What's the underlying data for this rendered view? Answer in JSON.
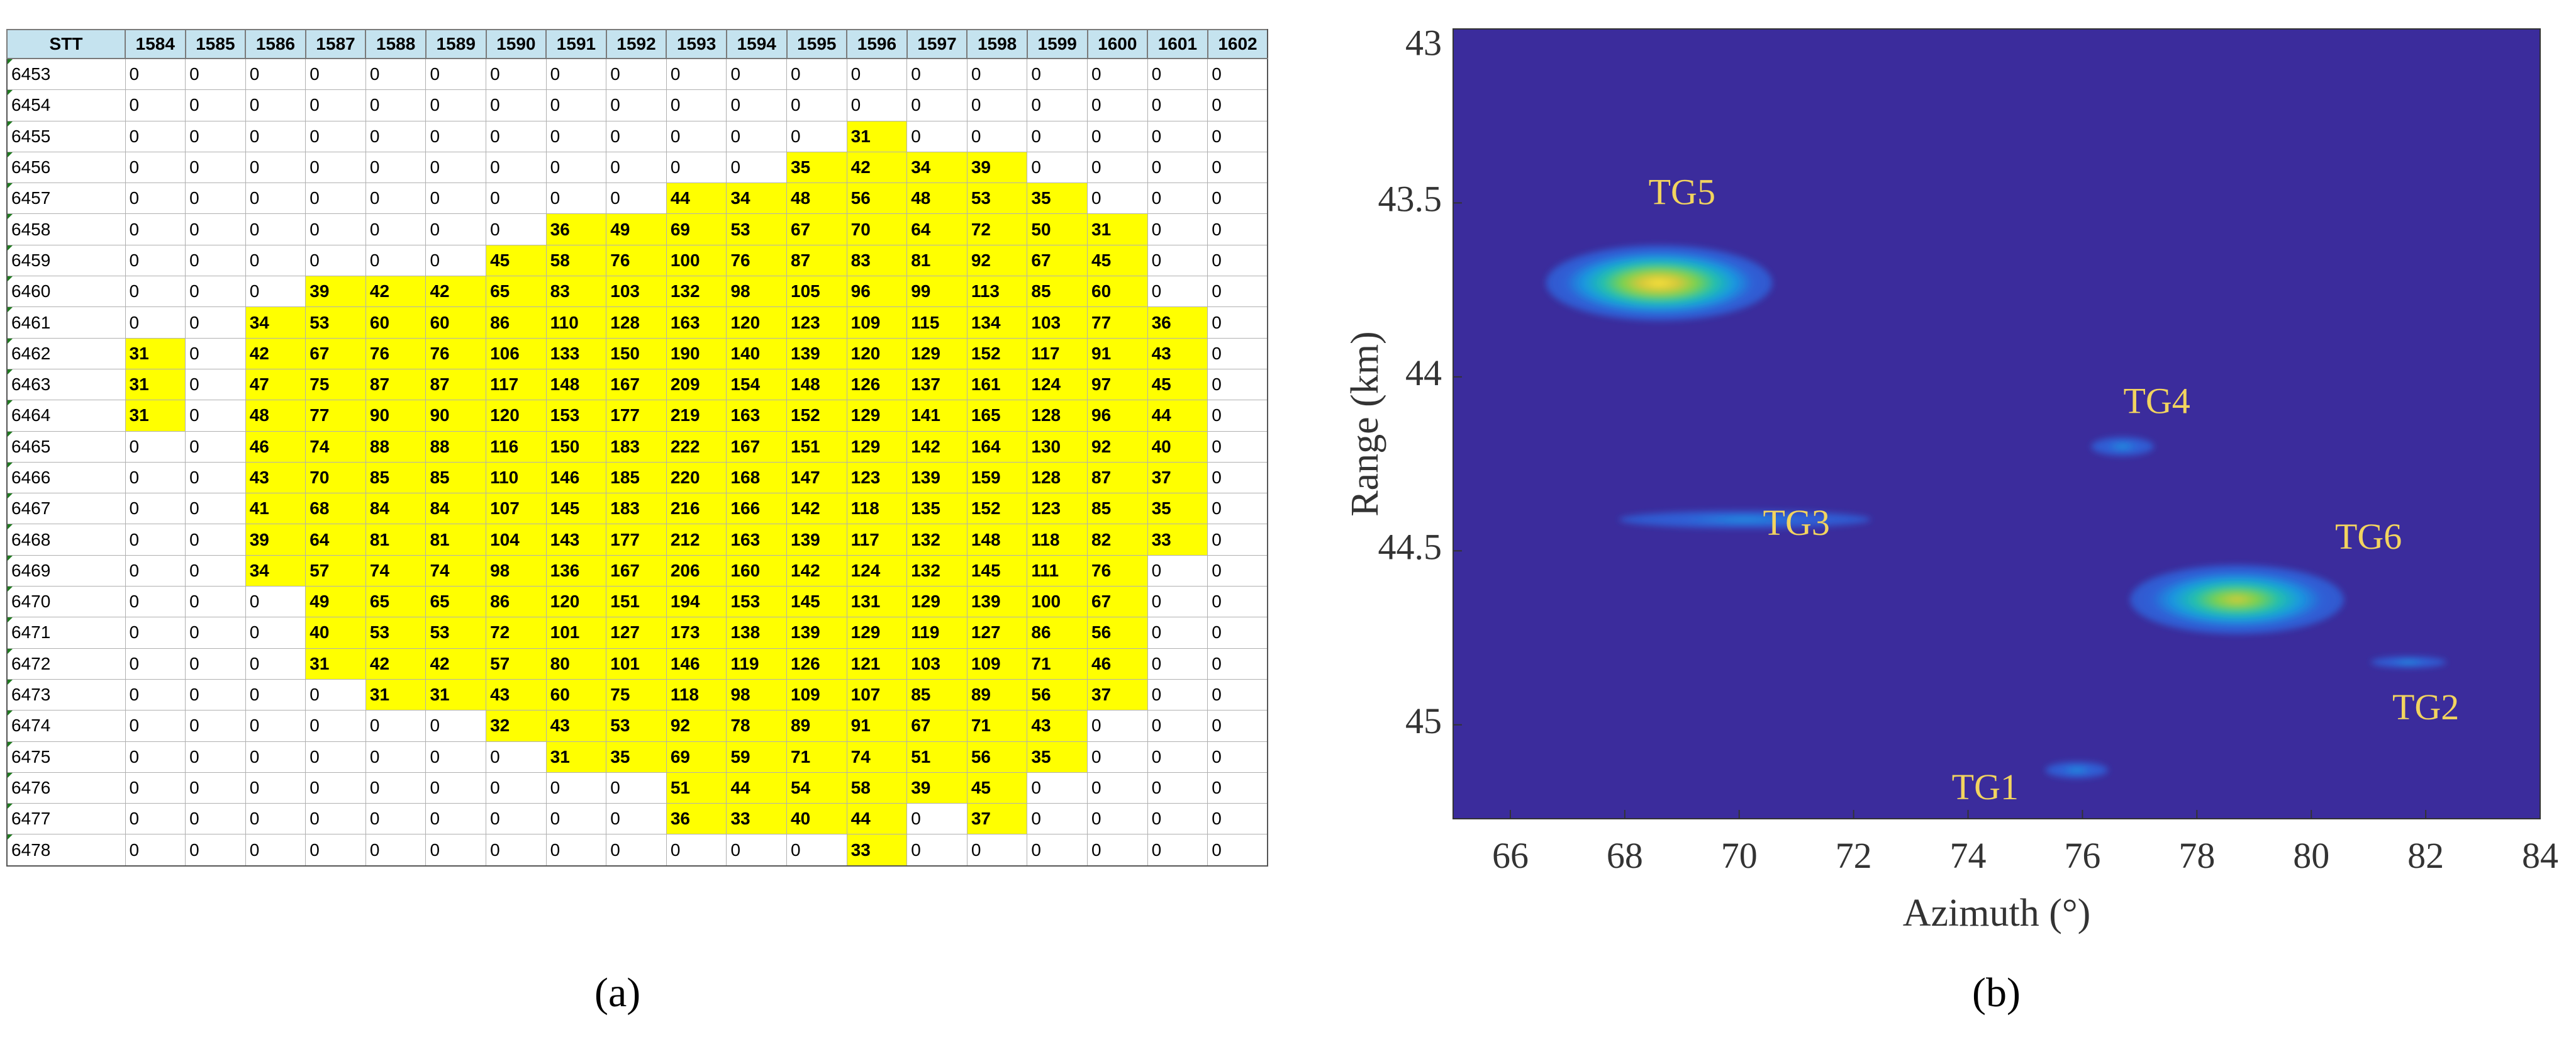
{
  "panel_a": {
    "caption": "(a)",
    "header": [
      "STT",
      "1584",
      "1585",
      "1586",
      "1587",
      "1588",
      "1589",
      "1590",
      "1591",
      "1592",
      "1593",
      "1594",
      "1595",
      "1596",
      "1597",
      "1598",
      "1599",
      "1600",
      "1601",
      "1602"
    ],
    "rows": [
      [
        "6453",
        "0",
        "0",
        "0",
        "0",
        "0",
        "0",
        "0",
        "0",
        "0",
        "0",
        "0",
        "0",
        "0",
        "0",
        "0",
        "0",
        "0",
        "0",
        "0"
      ],
      [
        "6454",
        "0",
        "0",
        "0",
        "0",
        "0",
        "0",
        "0",
        "0",
        "0",
        "0",
        "0",
        "0",
        "0",
        "0",
        "0",
        "0",
        "0",
        "0",
        "0"
      ],
      [
        "6455",
        "0",
        "0",
        "0",
        "0",
        "0",
        "0",
        "0",
        "0",
        "0",
        "0",
        "0",
        "0",
        "31",
        "0",
        "0",
        "0",
        "0",
        "0",
        "0"
      ],
      [
        "6456",
        "0",
        "0",
        "0",
        "0",
        "0",
        "0",
        "0",
        "0",
        "0",
        "0",
        "0",
        "35",
        "42",
        "34",
        "39",
        "0",
        "0",
        "0",
        "0"
      ],
      [
        "6457",
        "0",
        "0",
        "0",
        "0",
        "0",
        "0",
        "0",
        "0",
        "0",
        "44",
        "34",
        "48",
        "56",
        "48",
        "53",
        "35",
        "0",
        "0",
        "0"
      ],
      [
        "6458",
        "0",
        "0",
        "0",
        "0",
        "0",
        "0",
        "0",
        "36",
        "49",
        "69",
        "53",
        "67",
        "70",
        "64",
        "72",
        "50",
        "31",
        "0",
        "0"
      ],
      [
        "6459",
        "0",
        "0",
        "0",
        "0",
        "0",
        "0",
        "45",
        "58",
        "76",
        "100",
        "76",
        "87",
        "83",
        "81",
        "92",
        "67",
        "45",
        "0",
        "0"
      ],
      [
        "6460",
        "0",
        "0",
        "0",
        "39",
        "42",
        "42",
        "65",
        "83",
        "103",
        "132",
        "98",
        "105",
        "96",
        "99",
        "113",
        "85",
        "60",
        "0",
        "0"
      ],
      [
        "6461",
        "0",
        "0",
        "34",
        "53",
        "60",
        "60",
        "86",
        "110",
        "128",
        "163",
        "120",
        "123",
        "109",
        "115",
        "134",
        "103",
        "77",
        "36",
        "0"
      ],
      [
        "6462",
        "31",
        "0",
        "42",
        "67",
        "76",
        "76",
        "106",
        "133",
        "150",
        "190",
        "140",
        "139",
        "120",
        "129",
        "152",
        "117",
        "91",
        "43",
        "0"
      ],
      [
        "6463",
        "31",
        "0",
        "47",
        "75",
        "87",
        "87",
        "117",
        "148",
        "167",
        "209",
        "154",
        "148",
        "126",
        "137",
        "161",
        "124",
        "97",
        "45",
        "0"
      ],
      [
        "6464",
        "31",
        "0",
        "48",
        "77",
        "90",
        "90",
        "120",
        "153",
        "177",
        "219",
        "163",
        "152",
        "129",
        "141",
        "165",
        "128",
        "96",
        "44",
        "0"
      ],
      [
        "6465",
        "0",
        "0",
        "46",
        "74",
        "88",
        "88",
        "116",
        "150",
        "183",
        "222",
        "167",
        "151",
        "129",
        "142",
        "164",
        "130",
        "92",
        "40",
        "0"
      ],
      [
        "6466",
        "0",
        "0",
        "43",
        "70",
        "85",
        "85",
        "110",
        "146",
        "185",
        "220",
        "168",
        "147",
        "123",
        "139",
        "159",
        "128",
        "87",
        "37",
        "0"
      ],
      [
        "6467",
        "0",
        "0",
        "41",
        "68",
        "84",
        "84",
        "107",
        "145",
        "183",
        "216",
        "166",
        "142",
        "118",
        "135",
        "152",
        "123",
        "85",
        "35",
        "0"
      ],
      [
        "6468",
        "0",
        "0",
        "39",
        "64",
        "81",
        "81",
        "104",
        "143",
        "177",
        "212",
        "163",
        "139",
        "117",
        "132",
        "148",
        "118",
        "82",
        "33",
        "0"
      ],
      [
        "6469",
        "0",
        "0",
        "34",
        "57",
        "74",
        "74",
        "98",
        "136",
        "167",
        "206",
        "160",
        "142",
        "124",
        "132",
        "145",
        "111",
        "76",
        "0",
        "0"
      ],
      [
        "6470",
        "0",
        "0",
        "0",
        "49",
        "65",
        "65",
        "86",
        "120",
        "151",
        "194",
        "153",
        "145",
        "131",
        "129",
        "139",
        "100",
        "67",
        "0",
        "0"
      ],
      [
        "6471",
        "0",
        "0",
        "0",
        "40",
        "53",
        "53",
        "72",
        "101",
        "127",
        "173",
        "138",
        "139",
        "129",
        "119",
        "127",
        "86",
        "56",
        "0",
        "0"
      ],
      [
        "6472",
        "0",
        "0",
        "0",
        "31",
        "42",
        "42",
        "57",
        "80",
        "101",
        "146",
        "119",
        "126",
        "121",
        "103",
        "109",
        "71",
        "46",
        "0",
        "0"
      ],
      [
        "6473",
        "0",
        "0",
        "0",
        "0",
        "31",
        "31",
        "43",
        "60",
        "75",
        "118",
        "98",
        "109",
        "107",
        "85",
        "89",
        "56",
        "37",
        "0",
        "0"
      ],
      [
        "6474",
        "0",
        "0",
        "0",
        "0",
        "0",
        "0",
        "32",
        "43",
        "53",
        "92",
        "78",
        "89",
        "91",
        "67",
        "71",
        "43",
        "0",
        "0",
        "0"
      ],
      [
        "6475",
        "0",
        "0",
        "0",
        "0",
        "0",
        "0",
        "0",
        "31",
        "35",
        "69",
        "59",
        "71",
        "74",
        "51",
        "56",
        "35",
        "0",
        "0",
        "0"
      ],
      [
        "6476",
        "0",
        "0",
        "0",
        "0",
        "0",
        "0",
        "0",
        "0",
        "0",
        "51",
        "44",
        "54",
        "58",
        "39",
        "45",
        "0",
        "0",
        "0",
        "0"
      ],
      [
        "6477",
        "0",
        "0",
        "0",
        "0",
        "0",
        "0",
        "0",
        "0",
        "0",
        "36",
        "33",
        "40",
        "44",
        "0",
        "37",
        "0",
        "0",
        "0",
        "0"
      ],
      [
        "6478",
        "0",
        "0",
        "0",
        "0",
        "0",
        "0",
        "0",
        "0",
        "0",
        "0",
        "0",
        "0",
        "33",
        "0",
        "0",
        "0",
        "0",
        "0",
        "0"
      ]
    ],
    "unhighlighted": [
      [
        24,
        14
      ]
    ]
  },
  "chart_data": {
    "type": "heatmap",
    "caption": "(b)",
    "xlabel": "Azimuth (°)",
    "ylabel": "Range (km)",
    "xlim": [
      65,
      84
    ],
    "ylim": [
      45.27,
      43
    ],
    "x_ticks": [
      66,
      68,
      70,
      72,
      74,
      76,
      78,
      80,
      82,
      84
    ],
    "x_tick_labels": [
      "66",
      "68",
      "70",
      "72",
      "74",
      "76",
      "78",
      "80",
      "82",
      "84"
    ],
    "y_ticks": [
      43,
      43.5,
      44,
      44.5,
      45
    ],
    "y_tick_labels": [
      "43",
      "43.5",
      "44",
      "44.5",
      "45"
    ],
    "background_color": "#3b2c9c",
    "label_color": "#f2d45f",
    "colormap": [
      "#3b2c9c",
      "#2f5fd6",
      "#1a97e0",
      "#22bfae",
      "#7ad14f",
      "#d6c93a",
      "#f9e33a"
    ],
    "targets": [
      {
        "label": "TG1",
        "azimuth": 75.9,
        "range": 45.13,
        "peak": 0.35,
        "label_az": 74.3,
        "label_range": 45.19
      },
      {
        "label": "TG2",
        "azimuth": 81.7,
        "range": 44.82,
        "peak": 0.3,
        "label_az": 82.0,
        "label_range": 44.96
      },
      {
        "label": "TG3",
        "azimuth": 70.1,
        "range": 44.41,
        "peak": 0.35,
        "label_az": 71.0,
        "label_range": 44.43
      },
      {
        "label": "TG4",
        "azimuth": 76.7,
        "range": 44.2,
        "peak": 0.28,
        "label_az": 77.3,
        "label_range": 44.08
      },
      {
        "label": "TG5",
        "azimuth": 68.6,
        "range": 43.73,
        "peak": 1.0,
        "label_az": 69.0,
        "label_range": 43.48
      },
      {
        "label": "TG6",
        "azimuth": 78.7,
        "range": 44.64,
        "peak": 0.85,
        "label_az": 81.0,
        "label_range": 44.47
      }
    ]
  }
}
